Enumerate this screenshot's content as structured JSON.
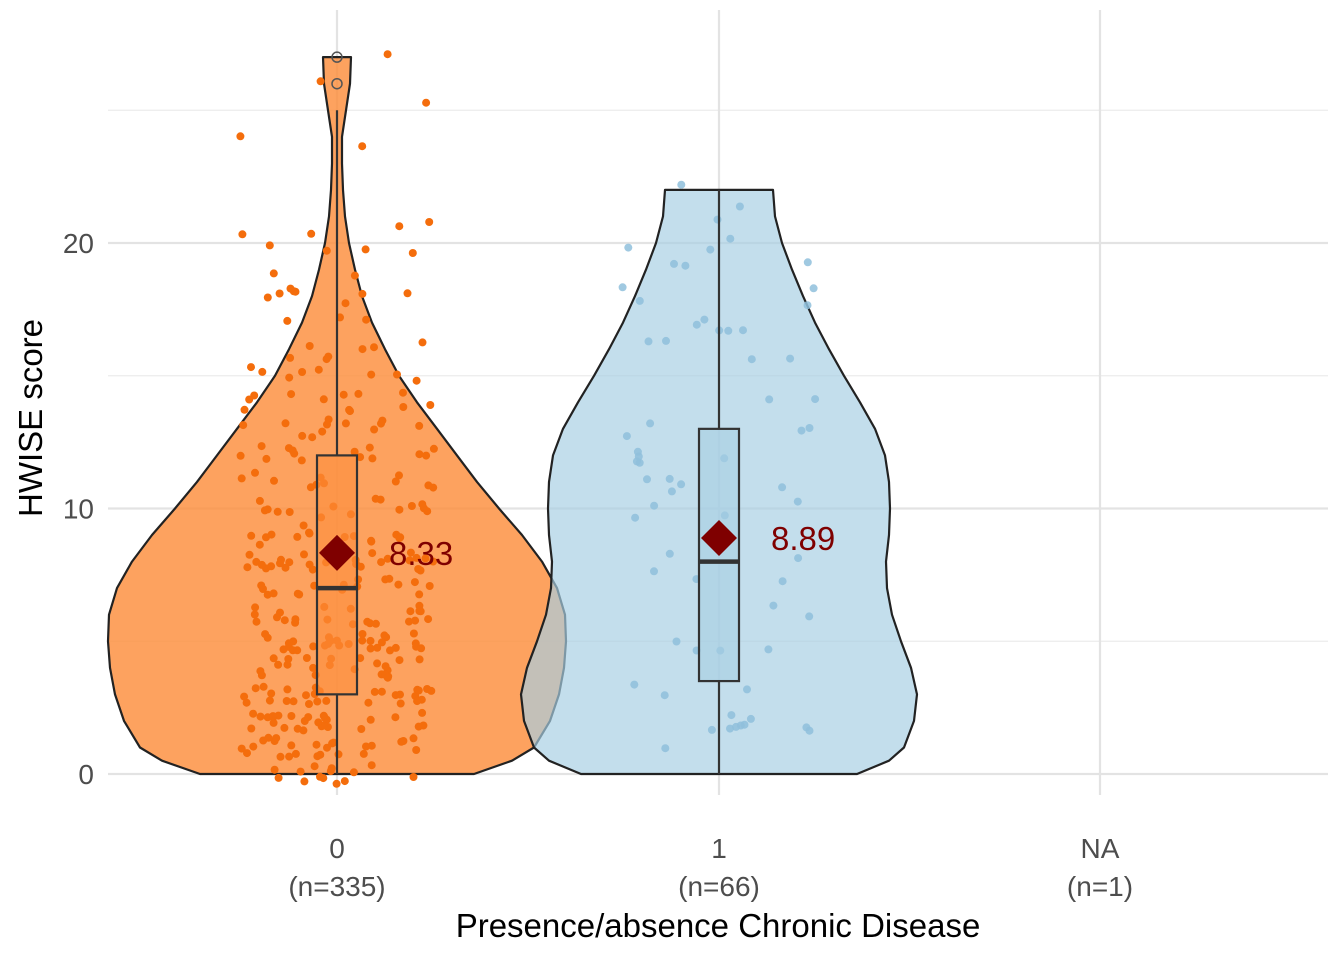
{
  "chart_data": {
    "type": "violin",
    "xlabel": "Presence/absence Chronic Disease",
    "ylabel": "HWISE score",
    "ylim": [
      -1.5,
      28.5
    ],
    "y_ticks": [
      0,
      10,
      20
    ],
    "grid": true,
    "categories": [
      {
        "label": "0",
        "n_label": "(n=335)",
        "color": "#fd8d3c",
        "point_color": "#f46d0c",
        "box": {
          "lower_whisker": 0,
          "q1": 3,
          "median": 7,
          "q3": 12,
          "upper_whisker": 25
        },
        "outliers": [
          26,
          27
        ],
        "mean": 8.33,
        "mean_label": "8.33",
        "violin_max": 27
      },
      {
        "label": "1",
        "n_label": "(n=66)",
        "color": "#a6cee3",
        "point_color": "#8fbfdc",
        "box": {
          "lower_whisker": 0,
          "q1": 3.5,
          "median": 8,
          "q3": 13,
          "upper_whisker": 22
        },
        "outliers": [],
        "mean": 8.89,
        "mean_label": "8.89",
        "violin_max": 22
      },
      {
        "label": "NA",
        "n_label": "(n=1)"
      }
    ],
    "mean_marker_color": "#7f0000",
    "mean_label_color": "#7f0000"
  }
}
